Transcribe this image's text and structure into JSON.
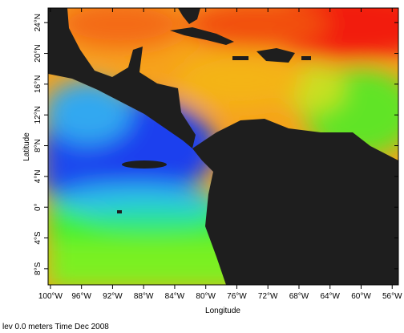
{
  "chart_data": {
    "type": "map",
    "xlabel": "Longitude",
    "ylabel": "Latitude",
    "footer": "lev 0.0 meters Time Dec 2008",
    "xlim": [
      -100.3,
      -55.2
    ],
    "ylim": [
      -10.1,
      25.9
    ],
    "xticks": [
      {
        "value": -100,
        "label": "100°W"
      },
      {
        "value": -96,
        "label": "96°W"
      },
      {
        "value": -92,
        "label": "92°W"
      },
      {
        "value": -88,
        "label": "88°W"
      },
      {
        "value": -84,
        "label": "84°W"
      },
      {
        "value": -80,
        "label": "80°W"
      },
      {
        "value": -76,
        "label": "76°W"
      },
      {
        "value": -72,
        "label": "72°W"
      },
      {
        "value": -68,
        "label": "68°W"
      },
      {
        "value": -64,
        "label": "64°W"
      },
      {
        "value": -60,
        "label": "60°W"
      },
      {
        "value": -56,
        "label": "56°W"
      }
    ],
    "yticks": [
      {
        "value": -8,
        "label": "8°S"
      },
      {
        "value": -4,
        "label": "4°S"
      },
      {
        "value": 0,
        "label": "0°"
      },
      {
        "value": 4,
        "label": "4°N"
      },
      {
        "value": 8,
        "label": "8°N"
      },
      {
        "value": 12,
        "label": "12°N"
      },
      {
        "value": 16,
        "label": "16°N"
      },
      {
        "value": 20,
        "label": "20°N"
      },
      {
        "value": 24,
        "label": "24°N"
      }
    ]
  }
}
